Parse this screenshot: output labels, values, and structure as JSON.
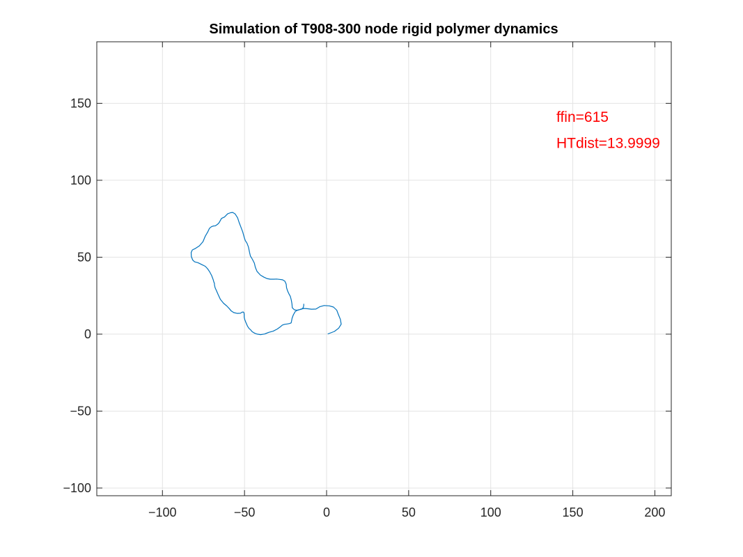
{
  "chart_data": {
    "type": "line",
    "title": "Simulation of T908-300 node rigid polymer dynamics",
    "xlabel": "",
    "ylabel": "",
    "xlim": [
      -140,
      210
    ],
    "ylim": [
      -105,
      190
    ],
    "grid": true,
    "x_ticks": [
      -100,
      -50,
      0,
      50,
      100,
      150,
      200
    ],
    "y_ticks": [
      -100,
      -50,
      0,
      50,
      100,
      150
    ],
    "series_color": "#0072bd",
    "annotation_color": "#ff0000",
    "annotations": [
      {
        "text": "ffin=615",
        "x": 140,
        "y": 138
      },
      {
        "text": "HTdist=13.9999",
        "x": 140,
        "y": 121
      }
    ],
    "series": [
      {
        "x": [
          0.9,
          4.8,
          7.4,
          8.9,
          8.4,
          7.2,
          6.2,
          4.2,
          1.7,
          -1.5,
          -4.2,
          -6.5,
          -9.2,
          -11.3,
          -13.6,
          -15.6,
          -17.6,
          -19.6,
          -20.9,
          -21.1,
          -21.5,
          -22.1,
          -23.0,
          -23.8,
          -24.4,
          -24.6,
          -25.4,
          -26.8,
          -28.6,
          -30.4,
          -32.2,
          -34.3,
          -36.3,
          -38.1,
          -40.3,
          -42.4,
          -43.4,
          -44.0,
          -45.2,
          -46.4,
          -46.9,
          -47.6,
          -48.5,
          -49.5,
          -50.2,
          -51.1,
          -52.2,
          -53.3,
          -54.2,
          -55.7,
          -57.2,
          -58.5,
          -60.3,
          -62.2,
          -64.0,
          -65.5,
          -66.5,
          -67.7,
          -69.0,
          -70.2,
          -71.4,
          -72.4,
          -74.0,
          -75.3,
          -77.5,
          -79.9,
          -81.8,
          -82.5,
          -82.4,
          -81.6,
          -80.4,
          -78.5,
          -76.2,
          -73.9,
          -72.5,
          -71.2,
          -70.0,
          -69.1,
          -68.6,
          -68.4,
          -68.3,
          -67.9,
          -67.1,
          -66.0,
          -64.7,
          -62.8,
          -60.8,
          -59.3,
          -58.0,
          -56.5,
          -54.5,
          -52.5,
          -51.4,
          -50.8,
          -50.3,
          -50.2,
          -50.2,
          -49.9,
          -49.2,
          -48.2,
          -47.2,
          -46.3,
          -45.4,
          -44.6,
          -43.6,
          -42.2,
          -40.2,
          -37.7,
          -35.2,
          -32.6,
          -30.1,
          -28.4,
          -27.0,
          -25.6,
          -24.0,
          -22.6,
          -21.6,
          -21.4,
          -21.0,
          -20.2,
          -19.1,
          -17.6,
          -16.1,
          -14.8,
          -14.2,
          -13.9,
          -13.9
        ],
        "y": [
          0.2,
          1.8,
          3.9,
          6.5,
          9.6,
          12.7,
          15.6,
          17.6,
          18.4,
          18.6,
          17.8,
          16.3,
          16.2,
          16.5,
          16.7,
          16.3,
          15.5,
          15.8,
          17.2,
          19.6,
          22.2,
          24.6,
          26.3,
          28.2,
          30.2,
          32.5,
          34.4,
          35.3,
          35.6,
          35.8,
          35.7,
          35.7,
          36.1,
          37.0,
          38.4,
          40.8,
          43.4,
          46.1,
          48.6,
          50.8,
          53.1,
          56.6,
          59.1,
          60.8,
          62.9,
          66.4,
          69.5,
          72.6,
          75.6,
          78.1,
          79.1,
          78.9,
          78.2,
          76.1,
          75.2,
          72.4,
          71.3,
          70.4,
          70.3,
          69.8,
          68.7,
          66.4,
          63.5,
          60.1,
          57.4,
          55.7,
          54.7,
          53.0,
          50.4,
          48.2,
          47.0,
          46.5,
          45.3,
          44.1,
          42.5,
          40.4,
          38.0,
          35.5,
          33.6,
          33.3,
          32.0,
          30.2,
          28.3,
          25.6,
          22.6,
          20.1,
          18.3,
          16.6,
          15.0,
          14.0,
          13.5,
          13.6,
          14.3,
          14.4,
          13.9,
          12.6,
          11.0,
          9.6,
          7.7,
          5.2,
          3.7,
          2.8,
          1.7,
          1.1,
          0.5,
          0.0,
          -0.3,
          0.1,
          1.2,
          1.9,
          3.3,
          4.6,
          5.9,
          6.4,
          6.6,
          6.9,
          7.3,
          8.3,
          10.4,
          12.7,
          14.7,
          15.7,
          16.0,
          16.4,
          17.4,
          18.5,
          19.5
        ]
      }
    ]
  }
}
